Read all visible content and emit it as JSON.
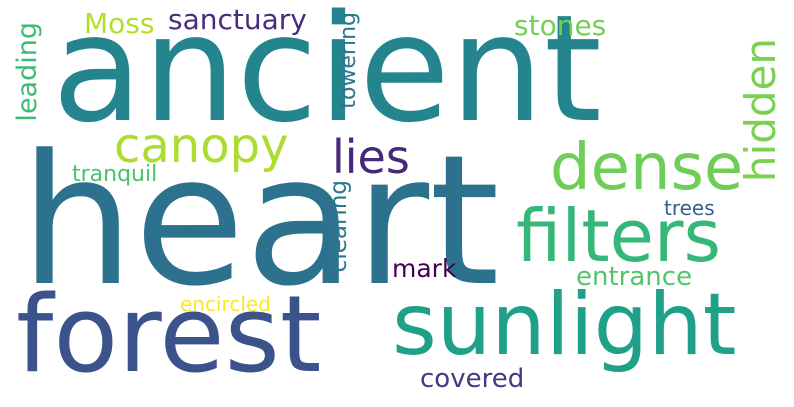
{
  "words": {
    "ancient": {
      "text": "ancient",
      "color": "#25858e"
    },
    "heart": {
      "text": "heart",
      "color": "#2c728e"
    },
    "forest": {
      "text": "forest",
      "color": "#3b528b"
    },
    "sunlight": {
      "text": "sunlight",
      "color": "#1fa088"
    },
    "filters": {
      "text": "filters",
      "color": "#35b779"
    },
    "dense": {
      "text": "dense",
      "color": "#6ece58"
    },
    "hidden": {
      "text": "hidden",
      "color": "#7ad151"
    },
    "canopy": {
      "text": "canopy",
      "color": "#addc30"
    },
    "lies": {
      "text": "lies",
      "color": "#482878"
    },
    "sanctuary": {
      "text": "sanctuary",
      "color": "#472d7b"
    },
    "moss": {
      "text": "Moss",
      "color": "#b5de2b"
    },
    "stones": {
      "text": "stones",
      "color": "#73d056"
    },
    "leading": {
      "text": "leading",
      "color": "#3bbb75"
    },
    "towering": {
      "text": "towering",
      "color": "#2a768e"
    },
    "tranquil": {
      "text": "tranquil",
      "color": "#4ac16d"
    },
    "trees": {
      "text": "trees",
      "color": "#355e8d"
    },
    "clearing": {
      "text": "clearing",
      "color": "#2a788e"
    },
    "mark": {
      "text": "mark",
      "color": "#440154"
    },
    "entrance": {
      "text": "entrance",
      "color": "#52c569"
    },
    "encircled": {
      "text": "encircled",
      "color": "#fde725"
    },
    "covered": {
      "text": "covered",
      "color": "#443983"
    }
  }
}
